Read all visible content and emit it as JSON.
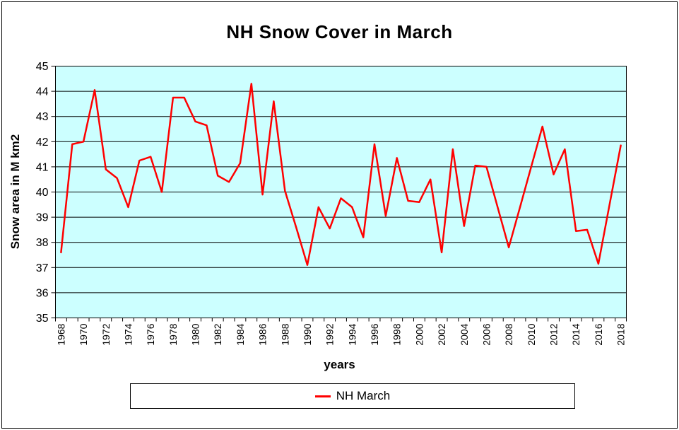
{
  "title": "NH Snow Cover in March",
  "axes": {
    "x_title": "years",
    "y_title": "Snow area in M km2"
  },
  "legend": {
    "entries": [
      {
        "label": "NH March",
        "color": "#FF0000"
      }
    ]
  },
  "colors": {
    "plot_bg": "#CCFFFF",
    "line": "#FF0000",
    "grid": "#000000",
    "frame": "#000000",
    "text": "#000000"
  },
  "chart_data": {
    "type": "line",
    "title": "NH Snow Cover in March",
    "xlabel": "years",
    "ylabel": "Snow area in M km2",
    "ylim": [
      35,
      45
    ],
    "ytick_step": 1,
    "grid": true,
    "legend_position": "bottom",
    "x_label_every": 2,
    "x": [
      1968,
      1969,
      1970,
      1971,
      1972,
      1973,
      1974,
      1975,
      1976,
      1977,
      1978,
      1979,
      1980,
      1981,
      1982,
      1983,
      1984,
      1985,
      1986,
      1987,
      1988,
      1989,
      1990,
      1991,
      1992,
      1993,
      1994,
      1995,
      1996,
      1997,
      1998,
      1999,
      2000,
      2001,
      2002,
      2003,
      2004,
      2005,
      2006,
      2007,
      2008,
      2009,
      2010,
      2011,
      2012,
      2013,
      2014,
      2015,
      2016,
      2017,
      2018
    ],
    "series": [
      {
        "name": "NH March",
        "color": "#FF0000",
        "values": [
          37.6,
          41.9,
          42.0,
          44.05,
          40.9,
          40.55,
          39.4,
          41.25,
          41.4,
          40.0,
          43.75,
          43.75,
          42.8,
          42.65,
          40.65,
          40.4,
          41.15,
          44.3,
          39.9,
          43.6,
          40.05,
          38.6,
          37.1,
          39.4,
          38.55,
          39.75,
          39.4,
          38.2,
          41.9,
          39.05,
          41.35,
          39.65,
          39.6,
          40.5,
          37.6,
          41.7,
          38.65,
          41.05,
          41.0,
          39.4,
          37.8,
          39.4,
          41.0,
          42.6,
          40.7,
          41.7,
          38.45,
          38.5,
          37.15,
          39.5,
          41.85
        ]
      }
    ]
  }
}
